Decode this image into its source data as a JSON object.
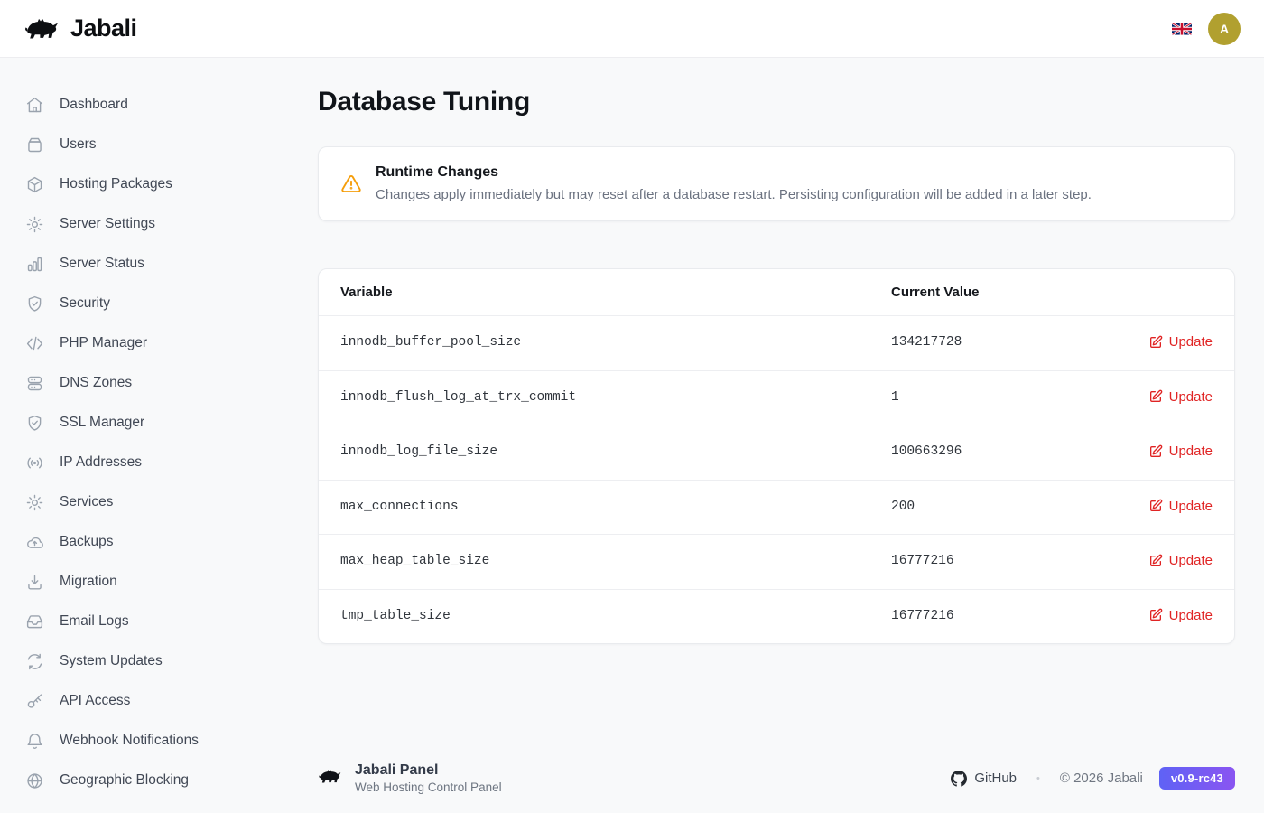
{
  "header": {
    "brand": "Jabali",
    "avatar_initial": "A"
  },
  "sidebar": {
    "items": [
      {
        "label": "Dashboard",
        "icon": "home"
      },
      {
        "label": "Users",
        "icon": "drawer"
      },
      {
        "label": "Hosting Packages",
        "icon": "package"
      },
      {
        "label": "Server Settings",
        "icon": "gear"
      },
      {
        "label": "Server Status",
        "icon": "bar-chart"
      },
      {
        "label": "Security",
        "icon": "shield-check"
      },
      {
        "label": "PHP Manager",
        "icon": "code"
      },
      {
        "label": "DNS Zones",
        "icon": "server-stack"
      },
      {
        "label": "SSL Manager",
        "icon": "shield-check"
      },
      {
        "label": "IP Addresses",
        "icon": "broadcast"
      },
      {
        "label": "Services",
        "icon": "gear"
      },
      {
        "label": "Backups",
        "icon": "cloud-upload"
      },
      {
        "label": "Migration",
        "icon": "download"
      },
      {
        "label": "Email Logs",
        "icon": "inbox"
      },
      {
        "label": "System Updates",
        "icon": "refresh"
      },
      {
        "label": "API Access",
        "icon": "key"
      },
      {
        "label": "Webhook Notifications",
        "icon": "bell"
      },
      {
        "label": "Geographic Blocking",
        "icon": "globe"
      }
    ]
  },
  "main": {
    "title": "Database Tuning",
    "notice": {
      "title": "Runtime Changes",
      "body": "Changes apply immediately but may reset after a database restart. Persisting configuration will be added in a later step."
    },
    "table": {
      "columns": {
        "variable": "Variable",
        "value": "Current Value"
      },
      "action_label": "Update",
      "rows": [
        {
          "variable": "innodb_buffer_pool_size",
          "value": "134217728"
        },
        {
          "variable": "innodb_flush_log_at_trx_commit",
          "value": "1"
        },
        {
          "variable": "innodb_log_file_size",
          "value": "100663296"
        },
        {
          "variable": "max_connections",
          "value": "200"
        },
        {
          "variable": "max_heap_table_size",
          "value": "16777216"
        },
        {
          "variable": "tmp_table_size",
          "value": "16777216"
        }
      ]
    }
  },
  "footer": {
    "brand": "Jabali Panel",
    "tagline": "Web Hosting Control Panel",
    "github_label": "GitHub",
    "separator": "•",
    "copyright": "© 2026 Jabali",
    "version": "v0.9-rc43"
  },
  "colors": {
    "action_red": "#e02424",
    "warning_orange": "#f59e0b",
    "avatar_gold": "#b1a02f",
    "badge_gradient_start": "#5f62f5",
    "badge_gradient_end": "#8a55f1",
    "page_background": "#f8f9fa"
  }
}
